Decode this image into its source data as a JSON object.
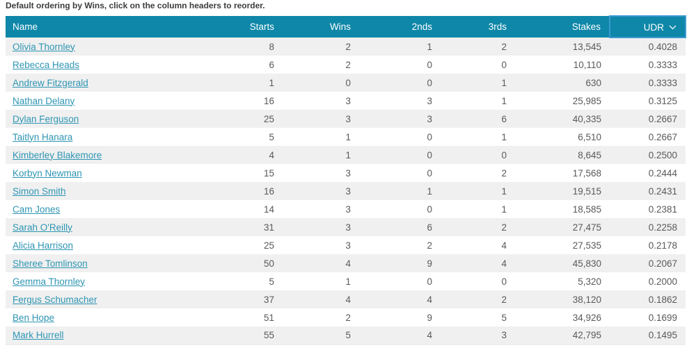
{
  "page": {
    "note": "Default ordering by Wins, click on the column headers to reorder."
  },
  "colors": {
    "header_bg": "#0e87a8",
    "sorted_column_border": "#3d9ad3",
    "link": "#2e95b3",
    "row_stripe": "#f0f0f0",
    "cell_text": "#58595b"
  },
  "table": {
    "sort": {
      "column": "UDR",
      "direction": "desc",
      "icon": "chevron-down-icon"
    },
    "columns": [
      {
        "key": "name",
        "label": "Name"
      },
      {
        "key": "starts",
        "label": "Starts"
      },
      {
        "key": "wins",
        "label": "Wins"
      },
      {
        "key": "seconds",
        "label": "2nds"
      },
      {
        "key": "thirds",
        "label": "3rds"
      },
      {
        "key": "stakes",
        "label": "Stakes"
      },
      {
        "key": "udr",
        "label": "UDR"
      }
    ],
    "rows": [
      {
        "name": "Olivia Thornley",
        "starts": "8",
        "wins": "2",
        "seconds": "1",
        "thirds": "2",
        "stakes": "13,545",
        "udr": "0.4028"
      },
      {
        "name": "Rebecca Heads",
        "starts": "6",
        "wins": "2",
        "seconds": "0",
        "thirds": "0",
        "stakes": "10,110",
        "udr": "0.3333"
      },
      {
        "name": "Andrew Fitzgerald",
        "starts": "1",
        "wins": "0",
        "seconds": "0",
        "thirds": "1",
        "stakes": "630",
        "udr": "0.3333"
      },
      {
        "name": "Nathan Delany",
        "starts": "16",
        "wins": "3",
        "seconds": "3",
        "thirds": "1",
        "stakes": "25,985",
        "udr": "0.3125"
      },
      {
        "name": "Dylan Ferguson",
        "starts": "25",
        "wins": "3",
        "seconds": "3",
        "thirds": "6",
        "stakes": "40,335",
        "udr": "0.2667"
      },
      {
        "name": "Taitlyn Hanara",
        "starts": "5",
        "wins": "1",
        "seconds": "0",
        "thirds": "1",
        "stakes": "6,510",
        "udr": "0.2667"
      },
      {
        "name": "Kimberley Blakemore",
        "starts": "4",
        "wins": "1",
        "seconds": "0",
        "thirds": "0",
        "stakes": "8,645",
        "udr": "0.2500"
      },
      {
        "name": "Korbyn Newman",
        "starts": "15",
        "wins": "3",
        "seconds": "0",
        "thirds": "2",
        "stakes": "17,568",
        "udr": "0.2444"
      },
      {
        "name": "Simon Smith",
        "starts": "16",
        "wins": "3",
        "seconds": "1",
        "thirds": "1",
        "stakes": "19,515",
        "udr": "0.2431"
      },
      {
        "name": "Cam Jones",
        "starts": "14",
        "wins": "3",
        "seconds": "0",
        "thirds": "1",
        "stakes": "18,585",
        "udr": "0.2381"
      },
      {
        "name": "Sarah O'Reilly",
        "starts": "31",
        "wins": "3",
        "seconds": "6",
        "thirds": "2",
        "stakes": "27,475",
        "udr": "0.2258"
      },
      {
        "name": "Alicia Harrison",
        "starts": "25",
        "wins": "3",
        "seconds": "2",
        "thirds": "4",
        "stakes": "27,535",
        "udr": "0.2178"
      },
      {
        "name": "Sheree Tomlinson",
        "starts": "50",
        "wins": "4",
        "seconds": "9",
        "thirds": "4",
        "stakes": "45,830",
        "udr": "0.2067"
      },
      {
        "name": "Gemma Thornley",
        "starts": "5",
        "wins": "1",
        "seconds": "0",
        "thirds": "0",
        "stakes": "5,320",
        "udr": "0.2000"
      },
      {
        "name": "Fergus Schumacher",
        "starts": "37",
        "wins": "4",
        "seconds": "4",
        "thirds": "2",
        "stakes": "38,120",
        "udr": "0.1862"
      },
      {
        "name": "Ben Hope",
        "starts": "51",
        "wins": "2",
        "seconds": "9",
        "thirds": "5",
        "stakes": "34,926",
        "udr": "0.1699"
      },
      {
        "name": "Mark Hurrell",
        "starts": "55",
        "wins": "5",
        "seconds": "4",
        "thirds": "3",
        "stakes": "42,795",
        "udr": "0.1495"
      }
    ]
  }
}
